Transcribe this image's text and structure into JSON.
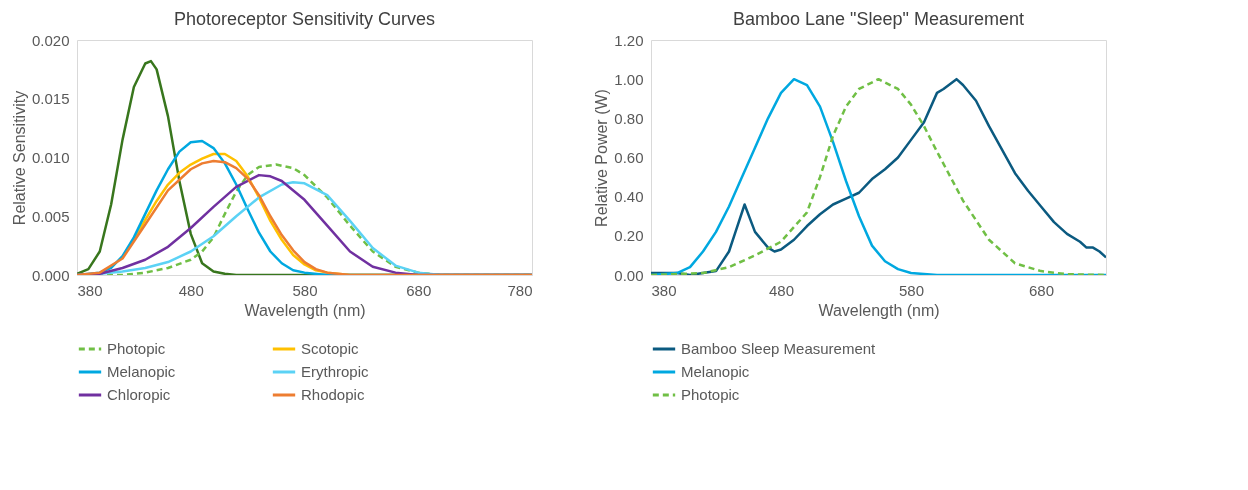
{
  "chart_data": [
    {
      "type": "line",
      "title": "Photoreceptor Sensitivity Curves",
      "xlabel": "Wavelength (nm)",
      "ylabel": "Relative Sensitivity",
      "xlim": [
        380,
        780
      ],
      "xticks": [
        380,
        480,
        580,
        680,
        780
      ],
      "ylim": [
        0,
        0.02
      ],
      "yticks": [
        {
          "value": 0,
          "label": "0.000"
        },
        {
          "value": 0.005,
          "label": "0.005"
        },
        {
          "value": 0.01,
          "label": "0.010"
        },
        {
          "value": 0.015,
          "label": "0.015"
        },
        {
          "value": 0.02,
          "label": "0.020"
        }
      ],
      "grid": false,
      "legend": "bottom",
      "marker": "none",
      "series": [
        {
          "color": "#38761d",
          "line_style": "solid",
          "x": [
            380,
            390,
            400,
            410,
            420,
            430,
            440,
            445,
            450,
            460,
            470,
            480,
            490,
            500,
            510,
            520,
            600,
            700,
            780
          ],
          "values": [
            0.0001,
            0.0005,
            0.002,
            0.006,
            0.0115,
            0.016,
            0.018,
            0.0182,
            0.0175,
            0.0135,
            0.008,
            0.0035,
            0.001,
            0.0003,
            0.0001,
            0,
            0,
            0,
            0
          ]
        },
        {
          "name": "Photopic",
          "color": "#70bf45",
          "line_style": "dashed",
          "x": [
            380,
            420,
            440,
            460,
            480,
            490,
            500,
            510,
            520,
            530,
            540,
            555,
            570,
            580,
            600,
            620,
            640,
            660,
            680,
            700,
            780
          ],
          "values": [
            0,
            0,
            0.0002,
            0.0006,
            0.0013,
            0.002,
            0.0032,
            0.0052,
            0.0071,
            0.0085,
            0.0092,
            0.0094,
            0.0091,
            0.0085,
            0.0066,
            0.0042,
            0.002,
            0.0007,
            0.0002,
            0,
            0
          ]
        },
        {
          "name": "Scotopic",
          "color": "#ffc000",
          "line_style": "solid",
          "x": [
            420,
            430,
            440,
            450,
            460,
            470,
            480,
            490,
            500,
            510,
            520,
            530,
            540,
            550,
            560,
            570,
            580,
            590,
            600,
            620,
            780
          ],
          "values": [
            0.0015,
            0.003,
            0.0047,
            0.0063,
            0.0077,
            0.0087,
            0.0094,
            0.0099,
            0.0103,
            0.0103,
            0.0097,
            0.0084,
            0.0066,
            0.0046,
            0.003,
            0.0017,
            0.0009,
            0.0004,
            0.0002,
            0,
            0
          ]
        },
        {
          "name": "Melanopic",
          "color": "#00a8e0",
          "line_style": "solid",
          "x": [
            380,
            400,
            410,
            420,
            430,
            440,
            450,
            460,
            470,
            480,
            490,
            500,
            510,
            520,
            530,
            540,
            550,
            560,
            570,
            580,
            600,
            780
          ],
          "values": [
            0,
            0.0002,
            0.0006,
            0.0016,
            0.0032,
            0.0052,
            0.0072,
            0.009,
            0.0105,
            0.0113,
            0.0114,
            0.0108,
            0.0095,
            0.0077,
            0.0056,
            0.0036,
            0.002,
            0.001,
            0.0004,
            0.0002,
            0,
            0
          ]
        },
        {
          "name": "Erythropic",
          "color": "#5bd2f5",
          "line_style": "solid",
          "x": [
            380,
            400,
            420,
            440,
            460,
            480,
            500,
            520,
            540,
            560,
            570,
            580,
            600,
            620,
            640,
            660,
            680,
            700,
            780
          ],
          "values": [
            0,
            0.0001,
            0.0003,
            0.0006,
            0.0011,
            0.002,
            0.0033,
            0.005,
            0.0066,
            0.0077,
            0.0079,
            0.0078,
            0.0068,
            0.0046,
            0.0023,
            0.0008,
            0.0002,
            0,
            0
          ]
        },
        {
          "name": "Chloropic",
          "color": "#7030a0",
          "line_style": "solid",
          "x": [
            380,
            400,
            420,
            440,
            460,
            480,
            500,
            520,
            540,
            550,
            560,
            580,
            600,
            620,
            640,
            660,
            680,
            780
          ],
          "values": [
            0,
            0.0001,
            0.0006,
            0.0013,
            0.0024,
            0.004,
            0.0058,
            0.0075,
            0.0085,
            0.0084,
            0.008,
            0.0064,
            0.0042,
            0.002,
            0.0007,
            0.0002,
            0,
            0
          ]
        },
        {
          "name": "Rhodopic",
          "color": "#ed7d31",
          "line_style": "solid",
          "x": [
            380,
            400,
            420,
            440,
            460,
            480,
            490,
            500,
            510,
            520,
            530,
            540,
            550,
            560,
            570,
            580,
            590,
            600,
            620,
            780
          ],
          "values": [
            0,
            0.0002,
            0.0014,
            0.0043,
            0.0072,
            0.009,
            0.0095,
            0.0097,
            0.0096,
            0.0091,
            0.0082,
            0.0068,
            0.005,
            0.0034,
            0.0021,
            0.0011,
            0.0005,
            0.0002,
            0,
            0
          ]
        }
      ]
    },
    {
      "type": "line",
      "title": "Bamboo Lane \"Sleep\" Measurement",
      "xlabel": "Wavelength (nm)",
      "ylabel": "Relative Power (W)",
      "xlim": [
        380,
        730
      ],
      "xticks": [
        380,
        480,
        580,
        680
      ],
      "ylim": [
        0,
        1.2
      ],
      "yticks": [
        {
          "value": 0,
          "label": "0.00"
        },
        {
          "value": 0.2,
          "label": "0.20"
        },
        {
          "value": 0.4,
          "label": "0.40"
        },
        {
          "value": 0.6,
          "label": "0.60"
        },
        {
          "value": 0.8,
          "label": "0.80"
        },
        {
          "value": 1.0,
          "label": "1.00"
        },
        {
          "value": 1.2,
          "label": "1.20"
        }
      ],
      "grid": false,
      "legend": "bottom",
      "marker": "none",
      "series": [
        {
          "name": "Bamboo Sleep Measurement",
          "color": "#0b5a80",
          "line_style": "solid",
          "x": [
            380,
            390,
            400,
            410,
            420,
            430,
            440,
            445,
            452,
            460,
            470,
            475,
            480,
            490,
            500,
            510,
            520,
            530,
            540,
            550,
            560,
            570,
            580,
            590,
            600,
            605,
            615,
            620,
            630,
            640,
            650,
            660,
            670,
            680,
            690,
            700,
            710,
            715,
            720,
            725,
            730
          ],
          "values": [
            0.01,
            0.01,
            0.01,
            0.0,
            0.01,
            0.02,
            0.12,
            0.22,
            0.36,
            0.22,
            0.14,
            0.12,
            0.13,
            0.18,
            0.25,
            0.31,
            0.36,
            0.39,
            0.42,
            0.49,
            0.54,
            0.6,
            0.69,
            0.78,
            0.93,
            0.95,
            1.0,
            0.97,
            0.89,
            0.76,
            0.64,
            0.52,
            0.43,
            0.35,
            0.27,
            0.21,
            0.17,
            0.14,
            0.14,
            0.12,
            0.09
          ]
        },
        {
          "name": "Melanopic",
          "color": "#00a8e0",
          "line_style": "solid",
          "x": [
            380,
            400,
            410,
            420,
            430,
            440,
            450,
            460,
            470,
            480,
            490,
            500,
            510,
            520,
            530,
            540,
            550,
            560,
            570,
            580,
            600,
            730
          ],
          "values": [
            0,
            0.01,
            0.04,
            0.12,
            0.22,
            0.35,
            0.5,
            0.65,
            0.8,
            0.93,
            1.0,
            0.97,
            0.86,
            0.68,
            0.48,
            0.3,
            0.15,
            0.07,
            0.03,
            0.01,
            0,
            0
          ]
        },
        {
          "name": "Photopic",
          "color": "#70bf45",
          "line_style": "dashed",
          "x": [
            380,
            420,
            440,
            460,
            480,
            500,
            510,
            520,
            530,
            540,
            555,
            570,
            580,
            590,
            600,
            620,
            640,
            660,
            680,
            700,
            730
          ],
          "values": [
            0,
            0.01,
            0.04,
            0.1,
            0.17,
            0.32,
            0.5,
            0.71,
            0.86,
            0.95,
            1.0,
            0.95,
            0.87,
            0.76,
            0.63,
            0.38,
            0.18,
            0.06,
            0.02,
            0.004,
            0
          ]
        }
      ]
    }
  ]
}
